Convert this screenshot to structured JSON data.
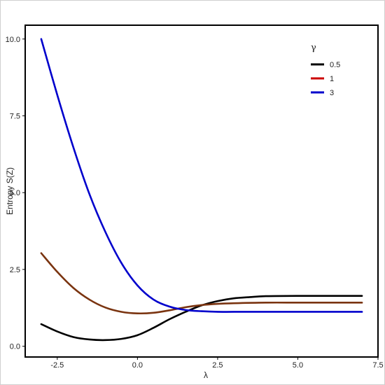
{
  "chart_data": {
    "type": "line",
    "title": "",
    "xlabel": "λ",
    "ylabel": "Entropy S(Z)",
    "xlim": [
      -3.5,
      7.5
    ],
    "ylim": [
      -0.35,
      10.45
    ],
    "x_ticks": [
      "-2.5",
      "0.0",
      "2.5",
      "5.0",
      "7.5"
    ],
    "x_tick_values": [
      -2.5,
      0.0,
      2.5,
      5.0,
      7.5
    ],
    "y_ticks": [
      "0.0",
      "2.5",
      "5.0",
      "7.5",
      "10.0"
    ],
    "y_tick_values": [
      0.0,
      2.5,
      5.0,
      7.5,
      10.0
    ],
    "grid": false,
    "legend": {
      "title": "γ",
      "position": "top-right"
    },
    "series": [
      {
        "name": "0.5",
        "color": "#000000",
        "x": [
          -3.0,
          -2.5,
          -2.0,
          -1.5,
          -1.0,
          -0.5,
          0.0,
          0.5,
          1.0,
          1.5,
          2.0,
          2.5,
          3.0,
          3.5,
          4.0,
          5.0,
          6.0,
          7.0
        ],
        "y": [
          0.72,
          0.48,
          0.3,
          0.22,
          0.2,
          0.24,
          0.36,
          0.6,
          0.88,
          1.12,
          1.33,
          1.47,
          1.56,
          1.6,
          1.63,
          1.64,
          1.64,
          1.64
        ]
      },
      {
        "name": "1",
        "color": "#cc0000",
        "x": [
          -3.0,
          -2.5,
          -2.0,
          -1.5,
          -1.0,
          -0.5,
          0.0,
          0.5,
          1.0,
          1.5,
          2.0,
          2.5,
          3.0,
          4.0,
          5.0,
          6.0,
          7.0
        ],
        "y": [
          3.03,
          2.42,
          1.9,
          1.52,
          1.26,
          1.12,
          1.07,
          1.09,
          1.17,
          1.27,
          1.34,
          1.38,
          1.4,
          1.42,
          1.42,
          1.42,
          1.42
        ]
      },
      {
        "name": "3",
        "color": "#0000cc",
        "x": [
          -3.0,
          -2.5,
          -2.0,
          -1.5,
          -1.0,
          -0.5,
          0.0,
          0.5,
          1.0,
          1.5,
          2.0,
          2.5,
          3.0,
          4.0,
          5.0,
          6.0,
          7.0
        ],
        "y": [
          10.0,
          8.18,
          6.48,
          4.96,
          3.72,
          2.71,
          1.98,
          1.52,
          1.29,
          1.18,
          1.14,
          1.12,
          1.12,
          1.12,
          1.12,
          1.12,
          1.12
        ]
      }
    ]
  }
}
